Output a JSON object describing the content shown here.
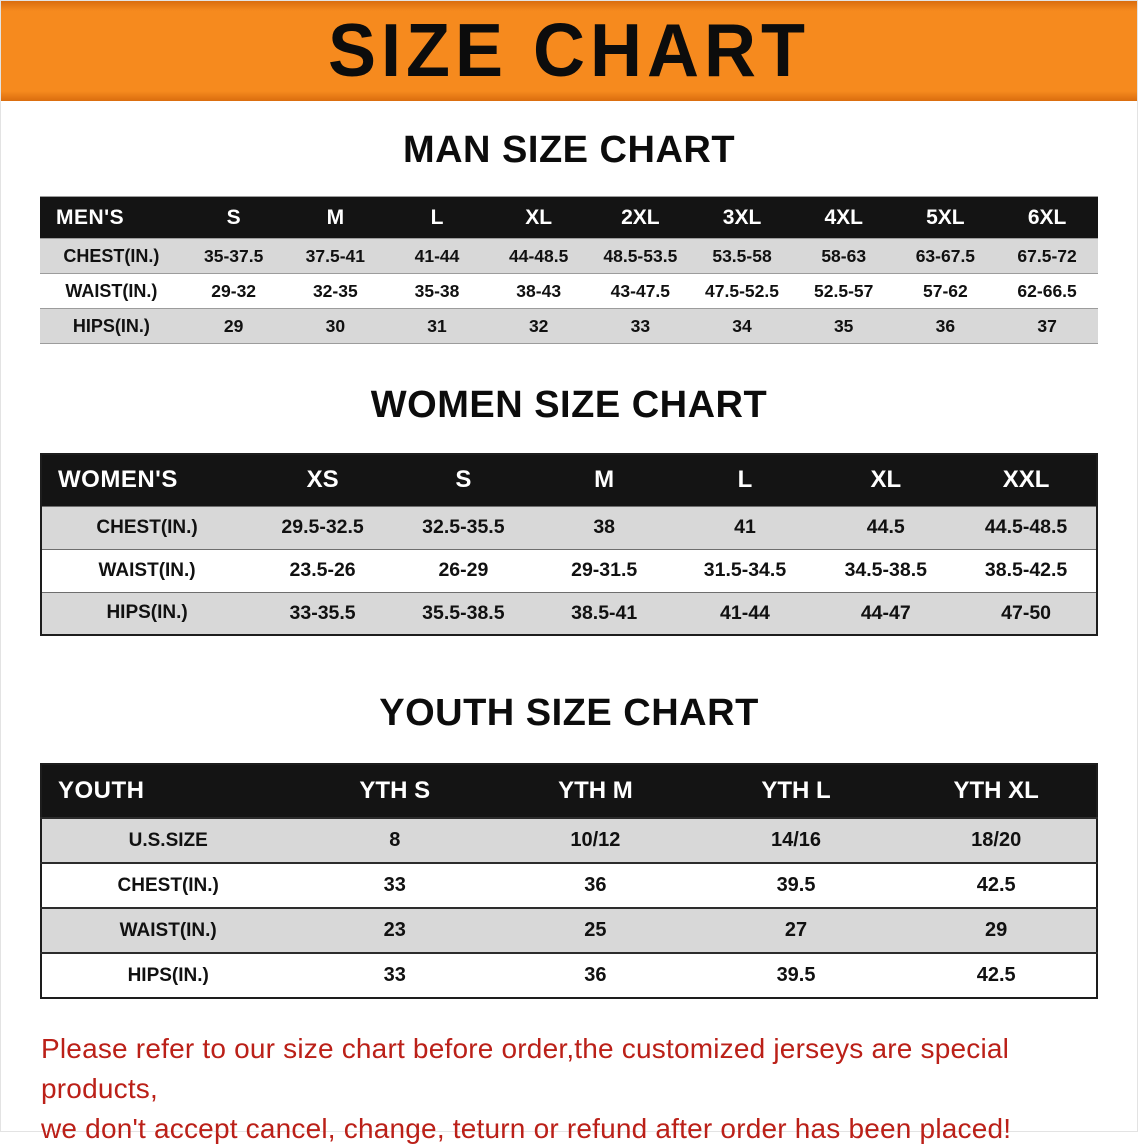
{
  "banner": {
    "title": "SIZE CHART"
  },
  "sections": [
    {
      "id": "men",
      "title": "MAN SIZE CHART",
      "header": [
        "MEN'S",
        "S",
        "M",
        "L",
        "XL",
        "2XL",
        "3XL",
        "4XL",
        "5XL",
        "6XL"
      ],
      "rows": [
        [
          "CHEST(IN.)",
          "35-37.5",
          "37.5-41",
          "41-44",
          "44-48.5",
          "48.5-53.5",
          "53.5-58",
          "58-63",
          "63-67.5",
          "67.5-72"
        ],
        [
          "WAIST(IN.)",
          "29-32",
          "32-35",
          "35-38",
          "38-43",
          "43-47.5",
          "47.5-52.5",
          "52.5-57",
          "57-62",
          "62-66.5"
        ],
        [
          "HIPS(IN.)",
          "29",
          "30",
          "31",
          "32",
          "33",
          "34",
          "35",
          "36",
          "37"
        ]
      ]
    },
    {
      "id": "women",
      "title": "WOMEN SIZE CHART",
      "header": [
        "WOMEN'S",
        "XS",
        "S",
        "M",
        "L",
        "XL",
        "XXL"
      ],
      "rows": [
        [
          "CHEST(IN.)",
          "29.5-32.5",
          "32.5-35.5",
          "38",
          "41",
          "44.5",
          "44.5-48.5"
        ],
        [
          "WAIST(IN.)",
          "23.5-26",
          "26-29",
          "29-31.5",
          "31.5-34.5",
          "34.5-38.5",
          "38.5-42.5"
        ],
        [
          "HIPS(IN.)",
          "33-35.5",
          "35.5-38.5",
          "38.5-41",
          "41-44",
          "44-47",
          "47-50"
        ]
      ]
    },
    {
      "id": "youth",
      "title": "YOUTH SIZE CHART",
      "header": [
        "YOUTH",
        "YTH S",
        "YTH M",
        "YTH L",
        "YTH XL"
      ],
      "rows": [
        [
          "U.S.SIZE",
          "8",
          "10/12",
          "14/16",
          "18/20"
        ],
        [
          "CHEST(IN.)",
          "33",
          "36",
          "39.5",
          "42.5"
        ],
        [
          "WAIST(IN.)",
          "23",
          "25",
          "27",
          "29"
        ],
        [
          "HIPS(IN.)",
          "33",
          "36",
          "39.5",
          "42.5"
        ]
      ]
    }
  ],
  "disclaimer": {
    "line1": "Please refer to our size chart before order,the customized jerseys are special products,",
    "line2": "we don't accept cancel, change, teturn or refund after order has been placed!"
  },
  "colors": {
    "banner_orange": "#f68a1e",
    "header_black": "#141414",
    "stripe_gray": "#d8d8d8",
    "disclaimer_red": "#bb2018"
  }
}
